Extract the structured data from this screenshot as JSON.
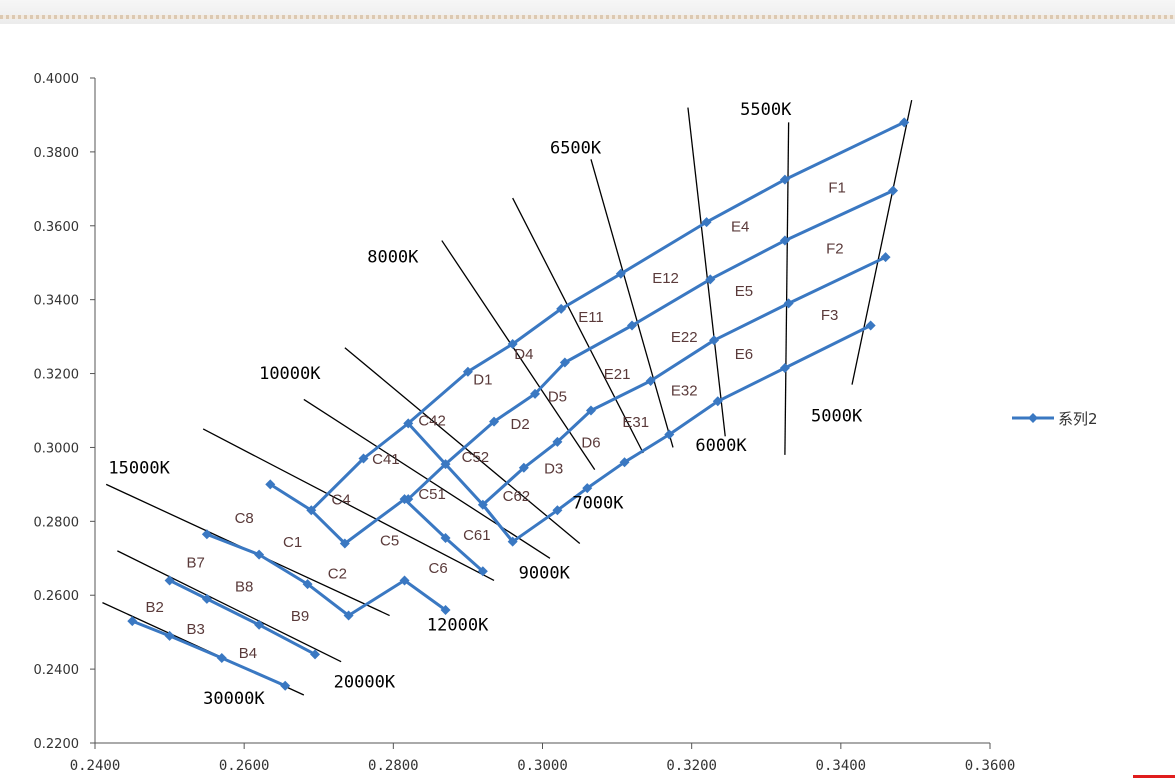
{
  "colors": {
    "series": "#3a78c2",
    "isotherm": "#000000",
    "axis": "#555555"
  },
  "chart_data": {
    "type": "line",
    "xlim": [
      0.24,
      0.36
    ],
    "ylim": [
      0.22,
      0.4
    ],
    "x_ticks": [
      0.24,
      0.26,
      0.28,
      0.3,
      0.32,
      0.34,
      0.36
    ],
    "x_tick_labels": [
      "0.2400",
      "0.2600",
      "0.2800",
      "0.3000",
      "0.3200",
      "0.3400",
      "0.3600"
    ],
    "y_ticks": [
      0.22,
      0.24,
      0.26,
      0.28,
      0.3,
      0.32,
      0.34,
      0.36,
      0.38,
      0.4
    ],
    "y_tick_labels": [
      "0.2200",
      "0.2400",
      "0.2600",
      "0.2800",
      "0.3000",
      "0.3200",
      "0.3400",
      "0.3600",
      "0.3800",
      "0.4000"
    ],
    "grid": false,
    "legend": {
      "position": "right",
      "entries": [
        "系列2"
      ]
    },
    "series": [
      {
        "name": "系列2",
        "points": [
          [
            0.245,
            0.253
          ],
          [
            0.25,
            0.249
          ],
          [
            0.257,
            0.243
          ],
          [
            0.2655,
            0.2355
          ]
        ]
      },
      {
        "points": [
          [
            0.25,
            0.264
          ],
          [
            0.255,
            0.259
          ],
          [
            0.262,
            0.252
          ],
          [
            0.2695,
            0.244
          ]
        ]
      },
      {
        "points": [
          [
            0.255,
            0.2765
          ],
          [
            0.262,
            0.271
          ],
          [
            0.2685,
            0.263
          ],
          [
            0.274,
            0.2545
          ],
          [
            0.2815,
            0.264
          ],
          [
            0.287,
            0.256
          ]
        ]
      },
      {
        "points": [
          [
            0.2635,
            0.29
          ],
          [
            0.269,
            0.283
          ],
          [
            0.2735,
            0.274
          ],
          [
            0.2815,
            0.286
          ],
          [
            0.287,
            0.2755
          ],
          [
            0.292,
            0.2665
          ]
        ]
      },
      {
        "points": [
          [
            0.269,
            0.283
          ],
          [
            0.276,
            0.297
          ],
          [
            0.282,
            0.3065
          ]
        ]
      },
      {
        "points": [
          [
            0.282,
            0.3065
          ],
          [
            0.287,
            0.2955
          ],
          [
            0.292,
            0.2845
          ],
          [
            0.296,
            0.2745
          ]
        ]
      },
      {
        "points": [
          [
            0.282,
            0.3065
          ],
          [
            0.29,
            0.3205
          ],
          [
            0.296,
            0.328
          ]
        ]
      },
      {
        "points": [
          [
            0.287,
            0.2955
          ],
          [
            0.2935,
            0.307
          ],
          [
            0.299,
            0.3145
          ],
          [
            0.303,
            0.323
          ]
        ]
      },
      {
        "points": [
          [
            0.292,
            0.2845
          ],
          [
            0.2975,
            0.2945
          ],
          [
            0.302,
            0.3015
          ],
          [
            0.3065,
            0.31
          ]
        ]
      },
      {
        "points": [
          [
            0.296,
            0.2745
          ],
          [
            0.302,
            0.283
          ],
          [
            0.306,
            0.289
          ],
          [
            0.311,
            0.296
          ]
        ]
      },
      {
        "points": [
          [
            0.296,
            0.328
          ],
          [
            0.3025,
            0.3375
          ],
          [
            0.3105,
            0.347
          ],
          [
            0.322,
            0.361
          ],
          [
            0.3325,
            0.3725
          ],
          [
            0.3485,
            0.388
          ]
        ]
      },
      {
        "points": [
          [
            0.303,
            0.323
          ],
          [
            0.312,
            0.333
          ],
          [
            0.3225,
            0.3455
          ],
          [
            0.3325,
            0.356
          ],
          [
            0.347,
            0.3695
          ]
        ]
      },
      {
        "points": [
          [
            0.3065,
            0.31
          ],
          [
            0.3145,
            0.318
          ],
          [
            0.323,
            0.329
          ],
          [
            0.333,
            0.339
          ],
          [
            0.346,
            0.3515
          ]
        ]
      },
      {
        "points": [
          [
            0.311,
            0.296
          ],
          [
            0.317,
            0.3035
          ],
          [
            0.3235,
            0.3125
          ],
          [
            0.3325,
            0.3215
          ],
          [
            0.344,
            0.333
          ]
        ]
      },
      {
        "points": [
          [
            0.282,
            0.286
          ],
          [
            0.287,
            0.2955
          ]
        ]
      },
      {
        "points": [
          [
            0.292,
            0.2845
          ],
          [
            0.296,
            0.2745
          ]
        ]
      }
    ],
    "isotherms": [
      {
        "label": "30000K",
        "from": [
          0.241,
          0.258
        ],
        "to": [
          0.268,
          0.233
        ]
      },
      {
        "label": "20000K",
        "from": [
          0.243,
          0.272
        ],
        "to": [
          0.273,
          0.242
        ]
      },
      {
        "label": "15000K",
        "from": [
          0.2415,
          0.29
        ],
        "to": [
          0.2795,
          0.2545
        ]
      },
      {
        "label": "12000K",
        "from": [
          0.2545,
          0.305
        ],
        "to": [
          0.2935,
          0.264
        ]
      },
      {
        "label": "10000K",
        "from": [
          0.268,
          0.313
        ],
        "to": [
          0.301,
          0.27
        ]
      },
      {
        "label": "9000K",
        "from": [
          0.2735,
          0.327
        ],
        "to": [
          0.305,
          0.274
        ]
      },
      {
        "label": "8000K",
        "from": [
          0.2865,
          0.356
        ],
        "to": [
          0.307,
          0.294
        ]
      },
      {
        "label": "7000K",
        "from": [
          0.296,
          0.3675
        ],
        "to": [
          0.3135,
          0.2985
        ]
      },
      {
        "label": "6500K",
        "from": [
          0.3065,
          0.378
        ],
        "to": [
          0.3175,
          0.3
        ]
      },
      {
        "label": "6000K",
        "from": [
          0.3195,
          0.392
        ],
        "to": [
          0.3245,
          0.303
        ]
      },
      {
        "label": "5500K",
        "from": [
          0.333,
          0.388
        ],
        "to": [
          0.3325,
          0.298
        ]
      },
      {
        "label": "5000K",
        "from": [
          0.3495,
          0.394
        ],
        "to": [
          0.3415,
          0.317
        ]
      }
    ],
    "cct_labels": [
      {
        "text": "30000K",
        "at": [
          0.2545,
          0.2305
        ]
      },
      {
        "text": "20000K",
        "at": [
          0.272,
          0.235
        ]
      },
      {
        "text": "15000K",
        "at": [
          0.2418,
          0.293
        ]
      },
      {
        "text": "12000K",
        "at": [
          0.2845,
          0.2505
        ]
      },
      {
        "text": "10000K",
        "at": [
          0.262,
          0.3185
        ]
      },
      {
        "text": "9000K",
        "at": [
          0.2968,
          0.2645
        ]
      },
      {
        "text": "8000K",
        "at": [
          0.2765,
          0.35
        ]
      },
      {
        "text": "7000K",
        "at": [
          0.304,
          0.2835
        ]
      },
      {
        "text": "6500K",
        "at": [
          0.301,
          0.3795
        ]
      },
      {
        "text": "6000K",
        "at": [
          0.3205,
          0.299
        ]
      },
      {
        "text": "5500K",
        "at": [
          0.3265,
          0.39
        ]
      },
      {
        "text": "5000K",
        "at": [
          0.336,
          0.307
        ]
      }
    ],
    "region_labels": [
      {
        "text": "B2",
        "at": [
          0.248,
          0.2555
        ]
      },
      {
        "text": "B3",
        "at": [
          0.2535,
          0.2495
        ]
      },
      {
        "text": "B4",
        "at": [
          0.2605,
          0.243
        ]
      },
      {
        "text": "B7",
        "at": [
          0.2535,
          0.2675
        ]
      },
      {
        "text": "B8",
        "at": [
          0.26,
          0.261
        ]
      },
      {
        "text": "B9",
        "at": [
          0.2675,
          0.253
        ]
      },
      {
        "text": "C8",
        "at": [
          0.26,
          0.2795
        ]
      },
      {
        "text": "C1",
        "at": [
          0.2665,
          0.273
        ]
      },
      {
        "text": "C2",
        "at": [
          0.2725,
          0.2645
        ]
      },
      {
        "text": "C4",
        "at": [
          0.273,
          0.2845
        ]
      },
      {
        "text": "C5",
        "at": [
          0.2795,
          0.2735
        ]
      },
      {
        "text": "C6",
        "at": [
          0.286,
          0.266
        ]
      },
      {
        "text": "C41",
        "at": [
          0.279,
          0.2955
        ]
      },
      {
        "text": "C51",
        "at": [
          0.2852,
          0.286
        ]
      },
      {
        "text": "C61",
        "at": [
          0.2912,
          0.275
        ]
      },
      {
        "text": "C42",
        "at": [
          0.2852,
          0.306
        ]
      },
      {
        "text": "C52",
        "at": [
          0.291,
          0.296
        ]
      },
      {
        "text": "C62",
        "at": [
          0.2965,
          0.2855
        ]
      },
      {
        "text": "D1",
        "at": [
          0.292,
          0.317
        ]
      },
      {
        "text": "D2",
        "at": [
          0.297,
          0.305
        ]
      },
      {
        "text": "D3",
        "at": [
          0.3015,
          0.293
        ]
      },
      {
        "text": "D4",
        "at": [
          0.2975,
          0.324
        ]
      },
      {
        "text": "D5",
        "at": [
          0.302,
          0.3125
        ]
      },
      {
        "text": "D6",
        "at": [
          0.3065,
          0.3
        ]
      },
      {
        "text": "E11",
        "at": [
          0.3065,
          0.334
        ]
      },
      {
        "text": "E21",
        "at": [
          0.31,
          0.3185
        ]
      },
      {
        "text": "E31",
        "at": [
          0.3125,
          0.3055
        ]
      },
      {
        "text": "E12",
        "at": [
          0.3165,
          0.3445
        ]
      },
      {
        "text": "E22",
        "at": [
          0.319,
          0.3285
        ]
      },
      {
        "text": "E32",
        "at": [
          0.319,
          0.314
        ]
      },
      {
        "text": "E4",
        "at": [
          0.3265,
          0.3585
        ]
      },
      {
        "text": "E5",
        "at": [
          0.327,
          0.341
        ]
      },
      {
        "text": "E6",
        "at": [
          0.327,
          0.324
        ]
      },
      {
        "text": "F1",
        "at": [
          0.3395,
          0.369
        ]
      },
      {
        "text": "F2",
        "at": [
          0.3392,
          0.3525
        ]
      },
      {
        "text": "F3",
        "at": [
          0.3385,
          0.3345
        ]
      }
    ]
  }
}
